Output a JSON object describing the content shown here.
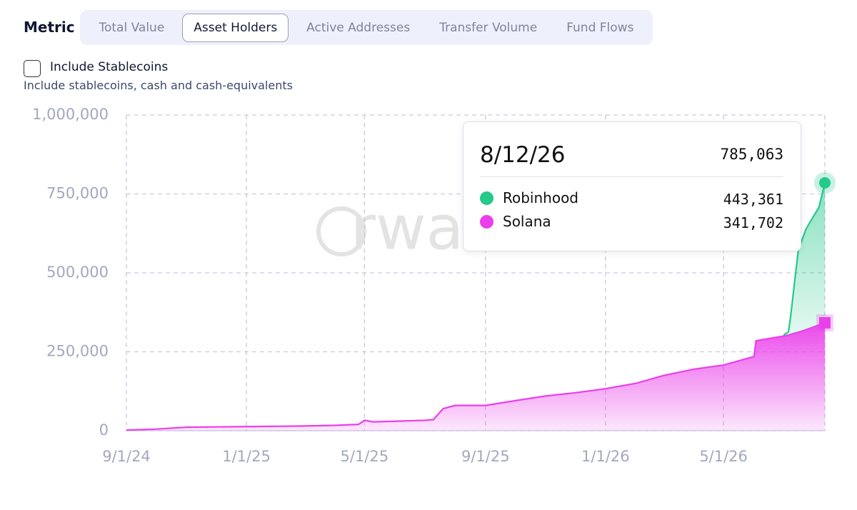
{
  "metric": {
    "label": "Metric",
    "tabs": [
      "Total Value",
      "Asset Holders",
      "Active Addresses",
      "Transfer Volume",
      "Fund Flows"
    ],
    "selected": 1
  },
  "stablecoins": {
    "label": "Include Stablecoins",
    "checked": false,
    "description": "Include stablecoins, cash and cash-equivalents"
  },
  "watermark": "rwa",
  "chart_data": {
    "type": "stacked-area",
    "x": [
      "2024-09-01",
      "2024-10-01",
      "2024-11-01",
      "2024-12-01",
      "2025-01-01",
      "2025-02-01",
      "2025-03-01",
      "2025-04-01",
      "2025-04-25",
      "2025-05-01",
      "2025-05-10",
      "2025-06-01",
      "2025-07-01",
      "2025-07-10",
      "2025-07-20",
      "2025-08-01",
      "2025-09-01",
      "2025-10-01",
      "2025-11-01",
      "2025-12-01",
      "2026-01-01",
      "2026-02-01",
      "2026-03-01",
      "2026-04-01",
      "2026-05-01",
      "2026-06-01",
      "2026-06-03",
      "2026-07-01",
      "2026-07-06",
      "2026-07-08",
      "2026-07-16",
      "2026-07-24",
      "2026-08-06",
      "2026-08-12"
    ],
    "series": [
      {
        "name": "Robinhood",
        "color": "#25c98b",
        "values": [
          null,
          null,
          null,
          null,
          null,
          null,
          null,
          null,
          null,
          null,
          null,
          null,
          null,
          null,
          null,
          null,
          null,
          null,
          null,
          null,
          null,
          null,
          null,
          null,
          null,
          null,
          null,
          3000,
          10000,
          52000,
          260000,
          320000,
          373000,
          443361
        ]
      },
      {
        "name": "Solana",
        "color": "#ea3fea",
        "values": [
          2000,
          5000,
          11000,
          12000,
          13000,
          14000,
          15000,
          17000,
          20000,
          33000,
          28000,
          30000,
          33000,
          35000,
          70000,
          80000,
          80000,
          95000,
          110000,
          120000,
          133000,
          150000,
          175000,
          195000,
          208000,
          235000,
          285000,
          300000,
          303000,
          305000,
          312000,
          320000,
          335000,
          341702
        ]
      }
    ],
    "xlim": [
      "2024-09-01",
      "2026-08-12"
    ],
    "xticks": [
      {
        "value": "2024-09-01",
        "label": "9/1/24"
      },
      {
        "value": "2025-01-01",
        "label": "1/1/25"
      },
      {
        "value": "2025-05-01",
        "label": "5/1/25"
      },
      {
        "value": "2025-09-01",
        "label": "9/1/25"
      },
      {
        "value": "2026-01-01",
        "label": "1/1/26"
      },
      {
        "value": "2026-05-01",
        "label": "5/1/26"
      }
    ],
    "ylim": [
      0,
      1000000
    ],
    "yticks": [
      0,
      {
        "value": 250000,
        "label": "250,000"
      },
      {
        "value": 500000,
        "label": "500,000"
      },
      {
        "value": 750000,
        "label": "750,000"
      },
      {
        "value": 1000000,
        "label": "1,000,000"
      }
    ],
    "grid": true
  },
  "tooltip": {
    "date": "8/12/26",
    "total": "785,063",
    "values": [
      "443,361",
      "341,702"
    ]
  }
}
